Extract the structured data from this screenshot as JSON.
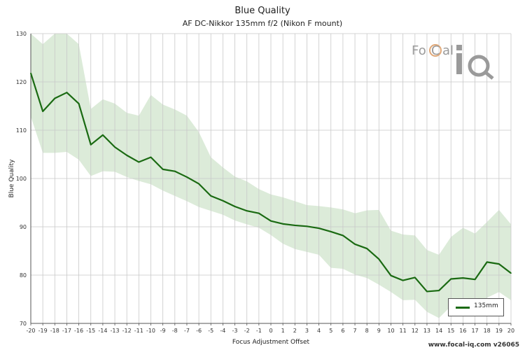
{
  "chart_data": {
    "type": "line",
    "title": "Blue Quality",
    "subtitle": "AF DC-Nikkor 135mm f/2 (Nikon F mount)",
    "xlabel": "Focus Adjustment Offset",
    "ylabel": "Blue Quality",
    "xlim": [
      -20,
      20
    ],
    "ylim": [
      70,
      130
    ],
    "yticks": [
      70,
      80,
      90,
      100,
      110,
      120,
      130
    ],
    "x": [
      -20,
      -19,
      -18,
      -17,
      -16,
      -15,
      -14,
      -13,
      -12,
      -11,
      -10,
      -9,
      -8,
      -7,
      -6,
      -5,
      -4,
      -3,
      -2,
      -1,
      0,
      1,
      2,
      3,
      4,
      5,
      6,
      7,
      8,
      9,
      10,
      11,
      12,
      13,
      14,
      15,
      16,
      17,
      18,
      19,
      20
    ],
    "series": [
      {
        "name": "135mm",
        "color": "#1a6a12",
        "values": [
          121.8,
          113.9,
          116.6,
          117.8,
          115.5,
          107.0,
          109.0,
          106.5,
          104.8,
          103.4,
          104.4,
          101.9,
          101.5,
          100.3,
          98.9,
          96.4,
          95.4,
          94.2,
          93.3,
          92.8,
          91.2,
          90.6,
          90.3,
          90.1,
          89.7,
          89.0,
          88.2,
          86.4,
          85.5,
          83.3,
          79.9,
          78.9,
          79.5,
          76.6,
          76.8,
          79.2,
          79.4,
          79.1,
          82.7,
          82.3,
          80.4
        ]
      }
    ],
    "band": {
      "color": "#dcebd9",
      "upper": [
        130,
        127.8,
        130,
        130,
        127.8,
        114.4,
        116.4,
        115.5,
        113.6,
        113.0,
        117.3,
        115.3,
        114.3,
        113.0,
        109.6,
        104.4,
        102.3,
        100.4,
        99.4,
        97.8,
        96.7,
        96.1,
        95.3,
        94.5,
        94.3,
        94.0,
        93.6,
        92.8,
        93.4,
        93.5,
        89.2,
        88.4,
        88.2,
        85.2,
        84.2,
        87.9,
        89.8,
        88.6,
        91.0,
        93.5,
        90.5
      ],
      "lower": [
        112.8,
        105.3,
        105.3,
        105.5,
        103.9,
        100.5,
        101.5,
        101.4,
        100.3,
        99.5,
        98.8,
        97.5,
        96.4,
        95.3,
        94.1,
        93.3,
        92.5,
        91.3,
        90.5,
        89.8,
        88.3,
        86.5,
        85.4,
        84.8,
        84.2,
        81.5,
        81.3,
        80.1,
        79.4,
        78.0,
        76.5,
        74.8,
        74.9,
        72.4,
        71.1,
        73.6,
        72.9,
        73.6,
        75.3,
        76.5,
        74.8
      ]
    },
    "grid": true,
    "legend_position": "bottom-right"
  },
  "legend": {
    "label": "135mm"
  },
  "footer": "www.focal-iq.com  v26065",
  "logo": {
    "text_top": "FoCal",
    "text_bottom": "iQ"
  }
}
